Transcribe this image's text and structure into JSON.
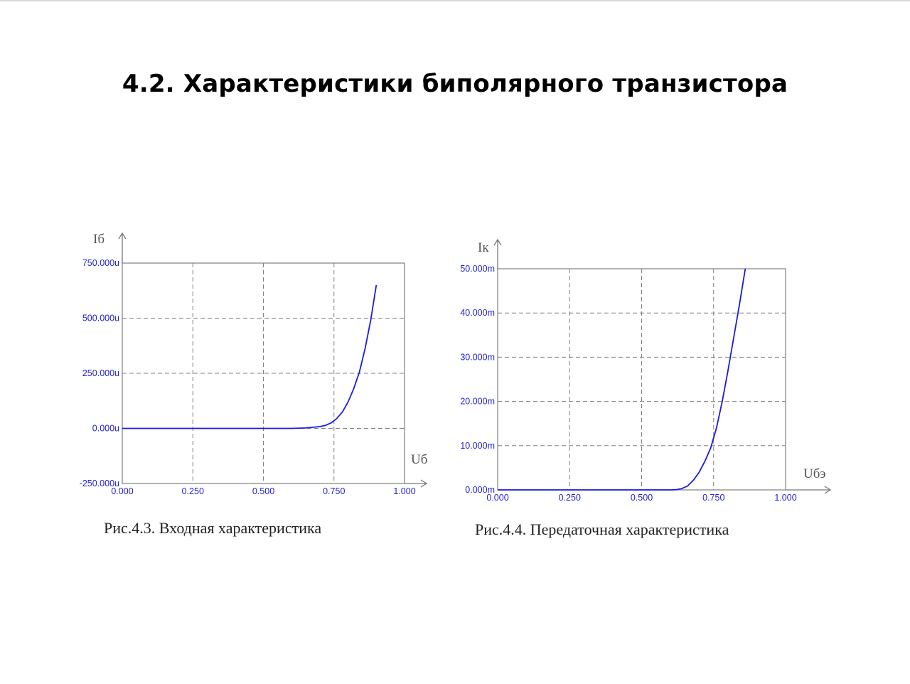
{
  "title": "4.2. Характеристики биполярного транзистора",
  "colors": {
    "curve": "#1a1ae6",
    "tick_labels": "#1f1fd6",
    "grid": "#808080",
    "frame": "#888888",
    "axis_arrows": "#777777"
  },
  "chart_data": [
    {
      "type": "line",
      "caption": "Рис.4.3. Входная характеристика",
      "xlabel": "Uб",
      "ylabel": "Iб",
      "xlim": [
        0,
        1
      ],
      "ylim": [
        -250,
        750
      ],
      "x_ticks": [
        "0.000",
        "0.250",
        "0.500",
        "0.750",
        "1.000"
      ],
      "y_ticks": [
        "-250.000u",
        "0.000u",
        "250.000u",
        "500.000u",
        "750.000u"
      ],
      "grid": true,
      "series": [
        {
          "x": [
            0,
            0.1,
            0.2,
            0.3,
            0.4,
            0.5,
            0.6,
            0.65,
            0.7,
            0.72,
            0.74,
            0.76,
            0.78,
            0.8,
            0.82,
            0.84,
            0.86,
            0.88,
            0.9
          ],
          "y": [
            0,
            0,
            0,
            0,
            0,
            0,
            0,
            2,
            8,
            14,
            25,
            45,
            75,
            120,
            180,
            255,
            360,
            490,
            650
          ]
        }
      ]
    },
    {
      "type": "line",
      "caption": "Рис.4.4. Передаточная характеристика",
      "xlabel": "Uбэ",
      "ylabel": "Iк",
      "xlim": [
        0,
        1
      ],
      "ylim": [
        0,
        50
      ],
      "x_ticks": [
        "0.000",
        "0.250",
        "0.500",
        "0.750",
        "1.000"
      ],
      "y_ticks": [
        "0.000m",
        "10.000m",
        "20.000m",
        "30.000m",
        "40.000m",
        "50.000m"
      ],
      "grid": true,
      "series": [
        {
          "x": [
            0,
            0.1,
            0.2,
            0.3,
            0.4,
            0.5,
            0.6,
            0.62,
            0.64,
            0.66,
            0.68,
            0.7,
            0.72,
            0.74,
            0.76,
            0.78,
            0.8,
            0.82,
            0.84,
            0.86
          ],
          "y": [
            0,
            0,
            0,
            0,
            0,
            0,
            0,
            0.05,
            0.3,
            0.9,
            2.2,
            4,
            6.5,
            9.5,
            14,
            20,
            27,
            34.5,
            42,
            50
          ]
        }
      ]
    }
  ]
}
